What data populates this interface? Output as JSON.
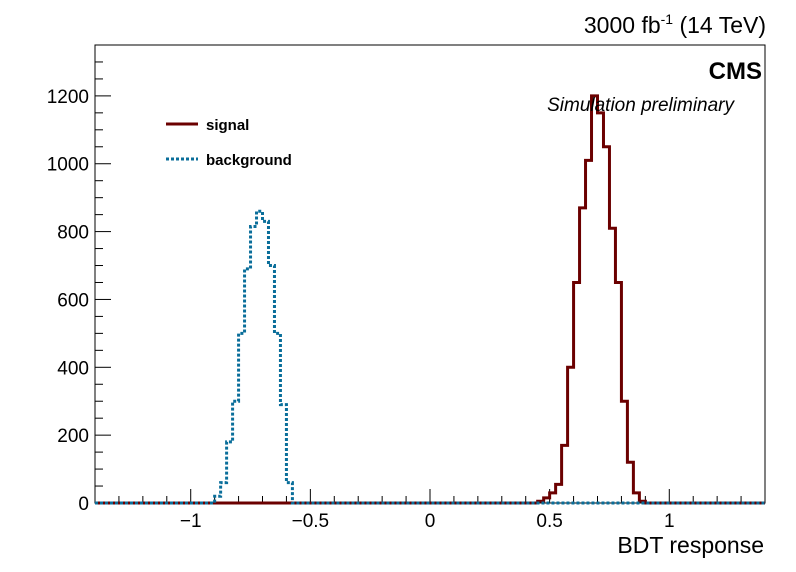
{
  "header": {
    "lumi_value": "3000 fb",
    "lumi_exponent": "-1",
    "lumi_energy": " (14 TeV)",
    "experiment": "CMS",
    "status": "Simulation preliminary"
  },
  "chart_data": {
    "type": "histogram",
    "xlabel": "BDT response",
    "ylabel": "",
    "xlim": [
      -1.4,
      1.4
    ],
    "ylim": [
      0,
      1350
    ],
    "x_ticks": [
      -1,
      -0.5,
      0,
      0.5,
      1
    ],
    "x_tick_labels": [
      "−1",
      "−0.5",
      "0",
      "0.5",
      "1"
    ],
    "y_ticks": [
      0,
      200,
      400,
      600,
      800,
      1000,
      1200
    ],
    "y_tick_labels": [
      "0",
      "200",
      "400",
      "600",
      "800",
      "1000",
      "1200"
    ],
    "legend_position": "top-left",
    "series": [
      {
        "name": "signal",
        "color": "#6b0000",
        "style": "solid",
        "bin_edges": [
          0.45,
          0.475,
          0.5,
          0.525,
          0.55,
          0.575,
          0.6,
          0.625,
          0.65,
          0.675,
          0.7,
          0.725,
          0.75,
          0.775,
          0.8,
          0.825,
          0.85,
          0.875,
          0.9
        ],
        "values": [
          5,
          15,
          30,
          55,
          170,
          400,
          650,
          870,
          1010,
          1200,
          1150,
          1050,
          810,
          650,
          300,
          120,
          30,
          5
        ]
      },
      {
        "name": "background",
        "color": "#0a6e9a",
        "style": "dotted",
        "bin_edges": [
          -0.9,
          -0.875,
          -0.85,
          -0.825,
          -0.8,
          -0.775,
          -0.75,
          -0.725,
          -0.7,
          -0.675,
          -0.65,
          -0.625,
          -0.6,
          -0.575
        ],
        "values": [
          20,
          60,
          180,
          300,
          500,
          690,
          815,
          860,
          830,
          700,
          500,
          290,
          60
        ]
      }
    ]
  }
}
